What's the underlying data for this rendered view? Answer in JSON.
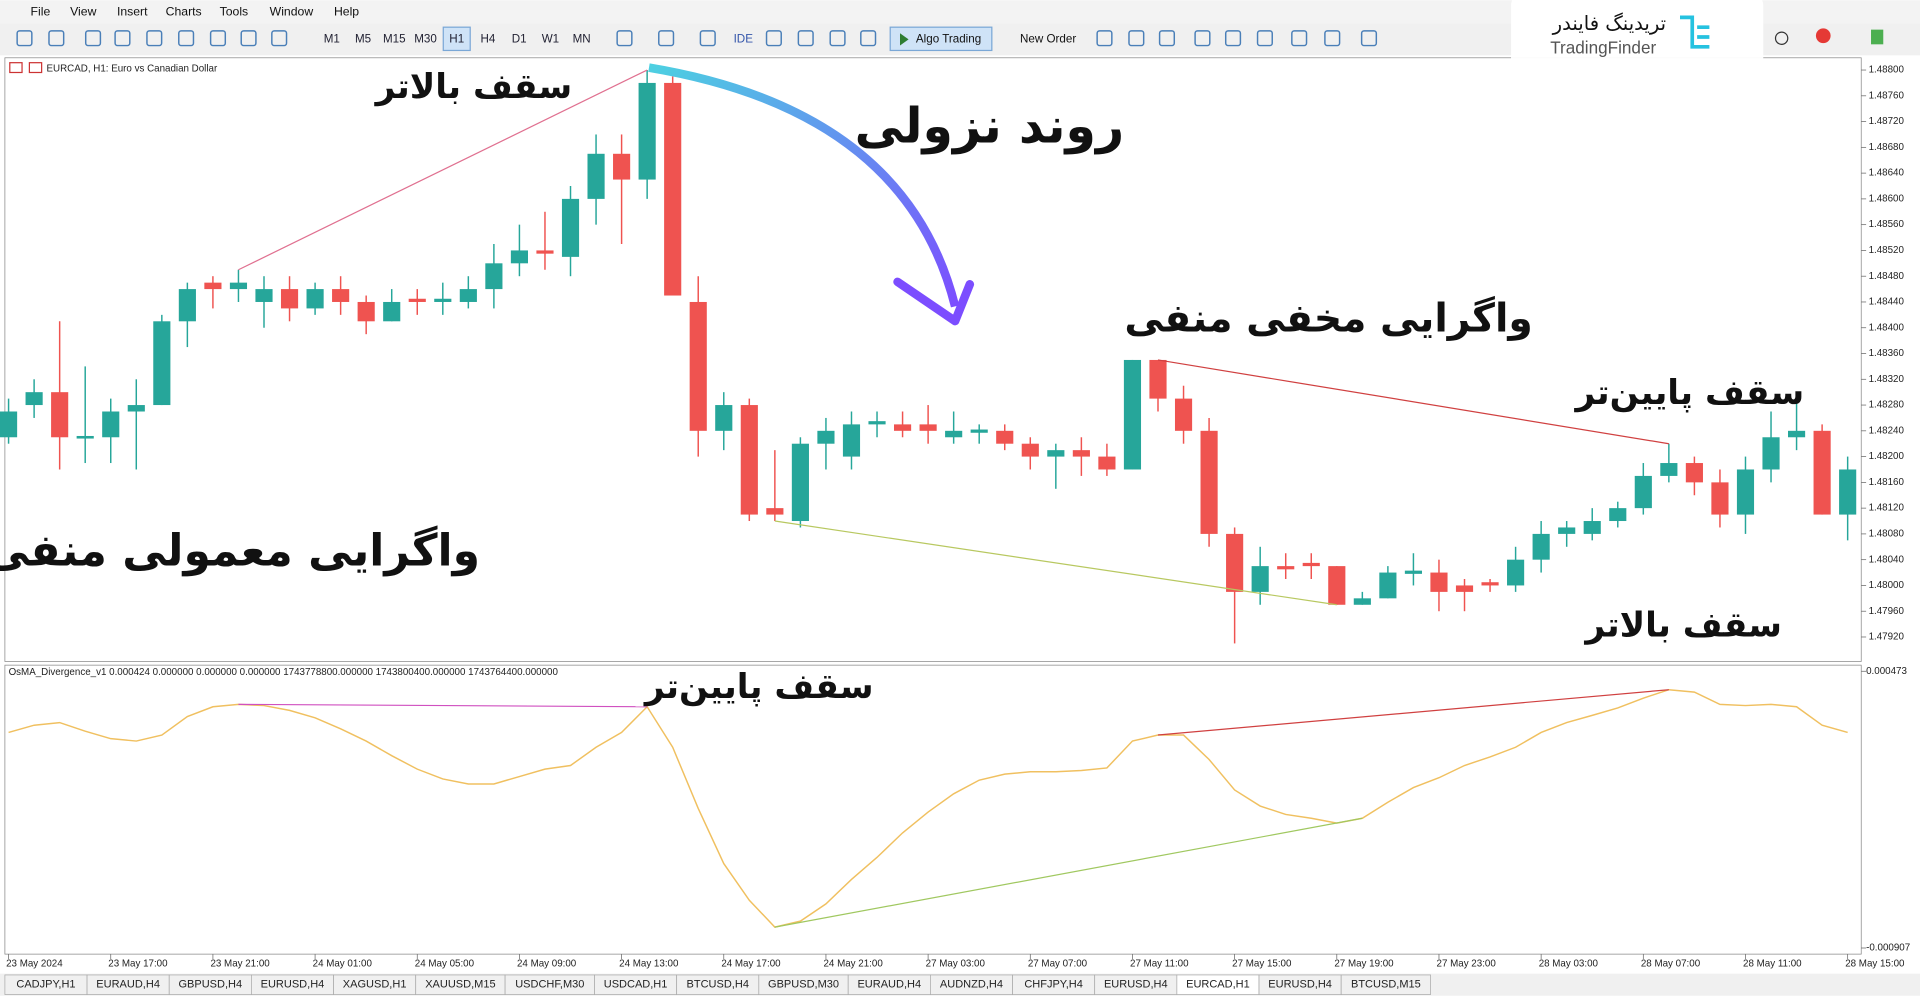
{
  "menu": [
    "File",
    "View",
    "Insert",
    "Charts",
    "Tools",
    "Window",
    "Help"
  ],
  "toolbar": {
    "timeframes": [
      "M1",
      "M5",
      "M15",
      "M30",
      "H1",
      "H4",
      "D1",
      "W1",
      "MN"
    ],
    "active_timeframe": 4,
    "ide": "IDE",
    "algo": "Algo Trading",
    "new_order": "New Order"
  },
  "logo": {
    "fa": "تریدینگ فایندر",
    "en": "TradingFinder"
  },
  "chart": {
    "type": "candlestick",
    "title": "EURCAD, H1:  Euro vs Canadian Dollar",
    "up_color": "#26a69a",
    "down_color": "#ef5350",
    "candles": [
      [
        1.4823,
        1.4829,
        1.4822,
        1.4827
      ],
      [
        1.4828,
        1.4832,
        1.4826,
        1.483
      ],
      [
        1.483,
        1.4841,
        1.4818,
        1.4823
      ],
      [
        1.48228,
        1.4834,
        1.4819,
        1.48232
      ],
      [
        1.4823,
        1.4829,
        1.4819,
        1.4827
      ],
      [
        1.4827,
        1.4832,
        1.4818,
        1.4828
      ],
      [
        1.4828,
        1.4842,
        1.4828,
        1.4841
      ],
      [
        1.4841,
        1.4847,
        1.4837,
        1.4846
      ],
      [
        1.4847,
        1.4848,
        1.4843,
        1.4846
      ],
      [
        1.4846,
        1.4849,
        1.4844,
        1.4847
      ],
      [
        1.4844,
        1.4848,
        1.484,
        1.4846
      ],
      [
        1.4846,
        1.4848,
        1.4841,
        1.4843
      ],
      [
        1.4843,
        1.4847,
        1.4842,
        1.4846
      ],
      [
        1.4846,
        1.4848,
        1.4842,
        1.4844
      ],
      [
        1.4844,
        1.4845,
        1.4839,
        1.4841
      ],
      [
        1.4841,
        1.4846,
        1.4841,
        1.4844
      ],
      [
        1.48445,
        1.4846,
        1.4842,
        1.4844
      ],
      [
        1.4844,
        1.4847,
        1.4842,
        1.48445
      ],
      [
        1.4844,
        1.4848,
        1.4843,
        1.4846
      ],
      [
        1.4846,
        1.4853,
        1.4843,
        1.485
      ],
      [
        1.485,
        1.4856,
        1.4848,
        1.4852
      ],
      [
        1.4852,
        1.4858,
        1.4849,
        1.48515
      ],
      [
        1.4851,
        1.4862,
        1.4848,
        1.486
      ],
      [
        1.486,
        1.487,
        1.4856,
        1.4867
      ],
      [
        1.4867,
        1.487,
        1.4853,
        1.4863
      ],
      [
        1.4863,
        1.488,
        1.486,
        1.4878
      ],
      [
        1.4878,
        1.4879,
        1.4845,
        1.4845
      ],
      [
        1.4844,
        1.4848,
        1.482,
        1.4824
      ],
      [
        1.4824,
        1.483,
        1.4821,
        1.4828
      ],
      [
        1.4828,
        1.4829,
        1.481,
        1.4811
      ],
      [
        1.4812,
        1.4821,
        1.481,
        1.4811
      ],
      [
        1.481,
        1.4823,
        1.4809,
        1.4822
      ],
      [
        1.4822,
        1.4826,
        1.4818,
        1.4824
      ],
      [
        1.482,
        1.4827,
        1.4818,
        1.4825
      ],
      [
        1.4825,
        1.4827,
        1.4823,
        1.48255
      ],
      [
        1.4825,
        1.4827,
        1.4823,
        1.4824
      ],
      [
        1.4825,
        1.4828,
        1.4822,
        1.4824
      ],
      [
        1.4823,
        1.4827,
        1.4822,
        1.4824
      ],
      [
        1.48237,
        1.4825,
        1.4822,
        1.48242
      ],
      [
        1.4824,
        1.4825,
        1.4821,
        1.4822
      ],
      [
        1.4822,
        1.4823,
        1.4818,
        1.482
      ],
      [
        1.482,
        1.4822,
        1.4815,
        1.4821
      ],
      [
        1.4821,
        1.4823,
        1.4817,
        1.482
      ],
      [
        1.482,
        1.4822,
        1.4817,
        1.4818
      ],
      [
        1.4818,
        1.4835,
        1.4818,
        1.4835
      ],
      [
        1.4835,
        1.4835,
        1.4827,
        1.4829
      ],
      [
        1.4829,
        1.4831,
        1.4822,
        1.4824
      ],
      [
        1.4824,
        1.4826,
        1.4806,
        1.4808
      ],
      [
        1.4808,
        1.4809,
        1.4791,
        1.4799
      ],
      [
        1.4799,
        1.4806,
        1.4797,
        1.4803
      ],
      [
        1.4803,
        1.4805,
        1.4801,
        1.48025
      ],
      [
        1.48035,
        1.4805,
        1.4801,
        1.4803
      ],
      [
        1.4803,
        1.4803,
        1.4797,
        1.4797
      ],
      [
        1.4797,
        1.4799,
        1.4797,
        1.4798
      ],
      [
        1.4798,
        1.4803,
        1.4798,
        1.4802
      ],
      [
        1.48018,
        1.4805,
        1.48,
        1.48023
      ],
      [
        1.4802,
        1.4804,
        1.4796,
        1.4799
      ],
      [
        1.48,
        1.4801,
        1.4796,
        1.4799
      ],
      [
        1.48005,
        1.4801,
        1.4799,
        1.48
      ],
      [
        1.48,
        1.4806,
        1.4799,
        1.4804
      ],
      [
        1.4804,
        1.481,
        1.4802,
        1.4808
      ],
      [
        1.4808,
        1.481,
        1.4806,
        1.4809
      ],
      [
        1.4808,
        1.4812,
        1.4807,
        1.481
      ],
      [
        1.481,
        1.4813,
        1.4809,
        1.4812
      ],
      [
        1.4812,
        1.4819,
        1.4811,
        1.4817
      ],
      [
        1.4817,
        1.4822,
        1.4816,
        1.4819
      ],
      [
        1.4819,
        1.482,
        1.4814,
        1.4816
      ],
      [
        1.4816,
        1.4818,
        1.4809,
        1.4811
      ],
      [
        1.4811,
        1.482,
        1.4808,
        1.4818
      ],
      [
        1.4818,
        1.4827,
        1.4816,
        1.4823
      ],
      [
        1.4823,
        1.483,
        1.4821,
        1.4824
      ],
      [
        1.4824,
        1.4825,
        1.4811,
        1.4811
      ],
      [
        1.4811,
        1.482,
        1.4807,
        1.4818
      ]
    ],
    "ylim": [
      1.47882,
      1.48819
    ],
    "yticks": [
      {
        "value": 1.488,
        "label": "1.48800"
      },
      {
        "value": 1.4876,
        "label": "1.48760"
      },
      {
        "value": 1.4872,
        "label": "1.48720"
      },
      {
        "value": 1.4868,
        "label": "1.48680"
      },
      {
        "value": 1.4864,
        "label": "1.48640"
      },
      {
        "value": 1.486,
        "label": "1.48600"
      },
      {
        "value": 1.4856,
        "label": "1.48560"
      },
      {
        "value": 1.4852,
        "label": "1.48520"
      },
      {
        "value": 1.4848,
        "label": "1.48480"
      },
      {
        "value": 1.4844,
        "label": "1.48440"
      },
      {
        "value": 1.484,
        "label": "1.48400"
      },
      {
        "value": 1.4836,
        "label": "1.48360"
      },
      {
        "value": 1.4832,
        "label": "1.48320"
      },
      {
        "value": 1.4828,
        "label": "1.48280"
      },
      {
        "value": 1.4824,
        "label": "1.48240"
      },
      {
        "value": 1.482,
        "label": "1.48200"
      },
      {
        "value": 1.4816,
        "label": "1.48160"
      },
      {
        "value": 1.4812,
        "label": "1.48120"
      },
      {
        "value": 1.4808,
        "label": "1.48080"
      },
      {
        "value": 1.4804,
        "label": "1.48040"
      },
      {
        "value": 1.48,
        "label": "1.48000"
      },
      {
        "value": 1.4796,
        "label": "1.47960"
      },
      {
        "value": 1.4792,
        "label": "1.47920"
      }
    ],
    "x_labels": [
      "23 May 2024",
      "23 May 17:00",
      "23 May 21:00",
      "24 May 01:00",
      "24 May 05:00",
      "24 May 09:00",
      "24 May 13:00",
      "24 May 17:00",
      "24 May 21:00",
      "27 May 03:00",
      "27 May 07:00",
      "27 May 11:00",
      "27 May 15:00",
      "27 May 19:00",
      "27 May 23:00",
      "28 May 03:00",
      "28 May 07:00",
      "28 May 11:00",
      "28 May 15:00"
    ],
    "indicator": {
      "label": "OsMA_Divergence_v1 0.000424 0.000000 0.000000 0.000000 1743778800.000000 1743800400.000000 1743764400.000000",
      "color": "#f0c060",
      "values": [
        0.000168,
        0.000204,
        0.000217,
        0.000174,
        0.000137,
        0.000125,
        0.000155,
        0.000247,
        0.000296,
        0.000308,
        0.000302,
        0.000278,
        0.000241,
        0.000186,
        0.000125,
        5.2e-05,
        -1.5e-05,
        -6.4e-05,
        -8.9e-05,
        -8.9e-05,
        -5.2e-05,
        -1.5e-05,
        3e-06,
        9.4e-05,
        0.000168,
        0.000296,
        9.4e-05,
        -0.000211,
        -0.000486,
        -0.000669,
        -0.000803,
        -0.000773,
        -0.000687,
        -0.000565,
        -0.000455,
        -0.000333,
        -0.000229,
        -0.000138,
        -7e-05,
        -4e-05,
        -2.8e-05,
        -2.8e-05,
        -2.2e-05,
        -9e-06,
        0.000125,
        0.000155,
        0.000155,
        3.3e-05,
        -0.000119,
        -0.000199,
        -0.000241,
        -0.00026,
        -0.000284,
        -0.00026,
        -0.00018,
        -0.000107,
        -5.8e-05,
        3e-06,
        4.6e-05,
        9.4e-05,
        0.000168,
        0.000217,
        0.000253,
        0.00029,
        0.000339,
        0.000381,
        0.000369,
        0.000308,
        0.000302,
        0.000308,
        0.000296,
        0.000204,
        0.000168
      ],
      "ylim": [
        -0.000907,
        0.000473
      ],
      "yticks": [
        0.000473,
        -0.000907
      ]
    },
    "annotations": [
      "سقف بالاتر",
      "روند نزولی",
      "واگرایی مخفی منفی",
      "سقف پایین‌تر",
      "واگرایی معمولی منفی",
      "سقف بالاتر",
      "سقف پایین‌تر"
    ]
  },
  "tabs": [
    "CADJPY,H1",
    "EURAUD,H4",
    "GBPUSD,H4",
    "EURUSD,H4",
    "XAGUSD,H1",
    "XAUUSD,M15",
    "USDCHF,M30",
    "USDCAD,H1",
    "BTCUSD,H4",
    "GBPUSD,M30",
    "EURAUD,H4",
    "AUDNZD,H4",
    "CHFJPY,H4",
    "EURUSD,H4",
    "EURCAD,H1",
    "EURUSD,H4",
    "BTCUSD,M15"
  ],
  "active_tab": 14
}
